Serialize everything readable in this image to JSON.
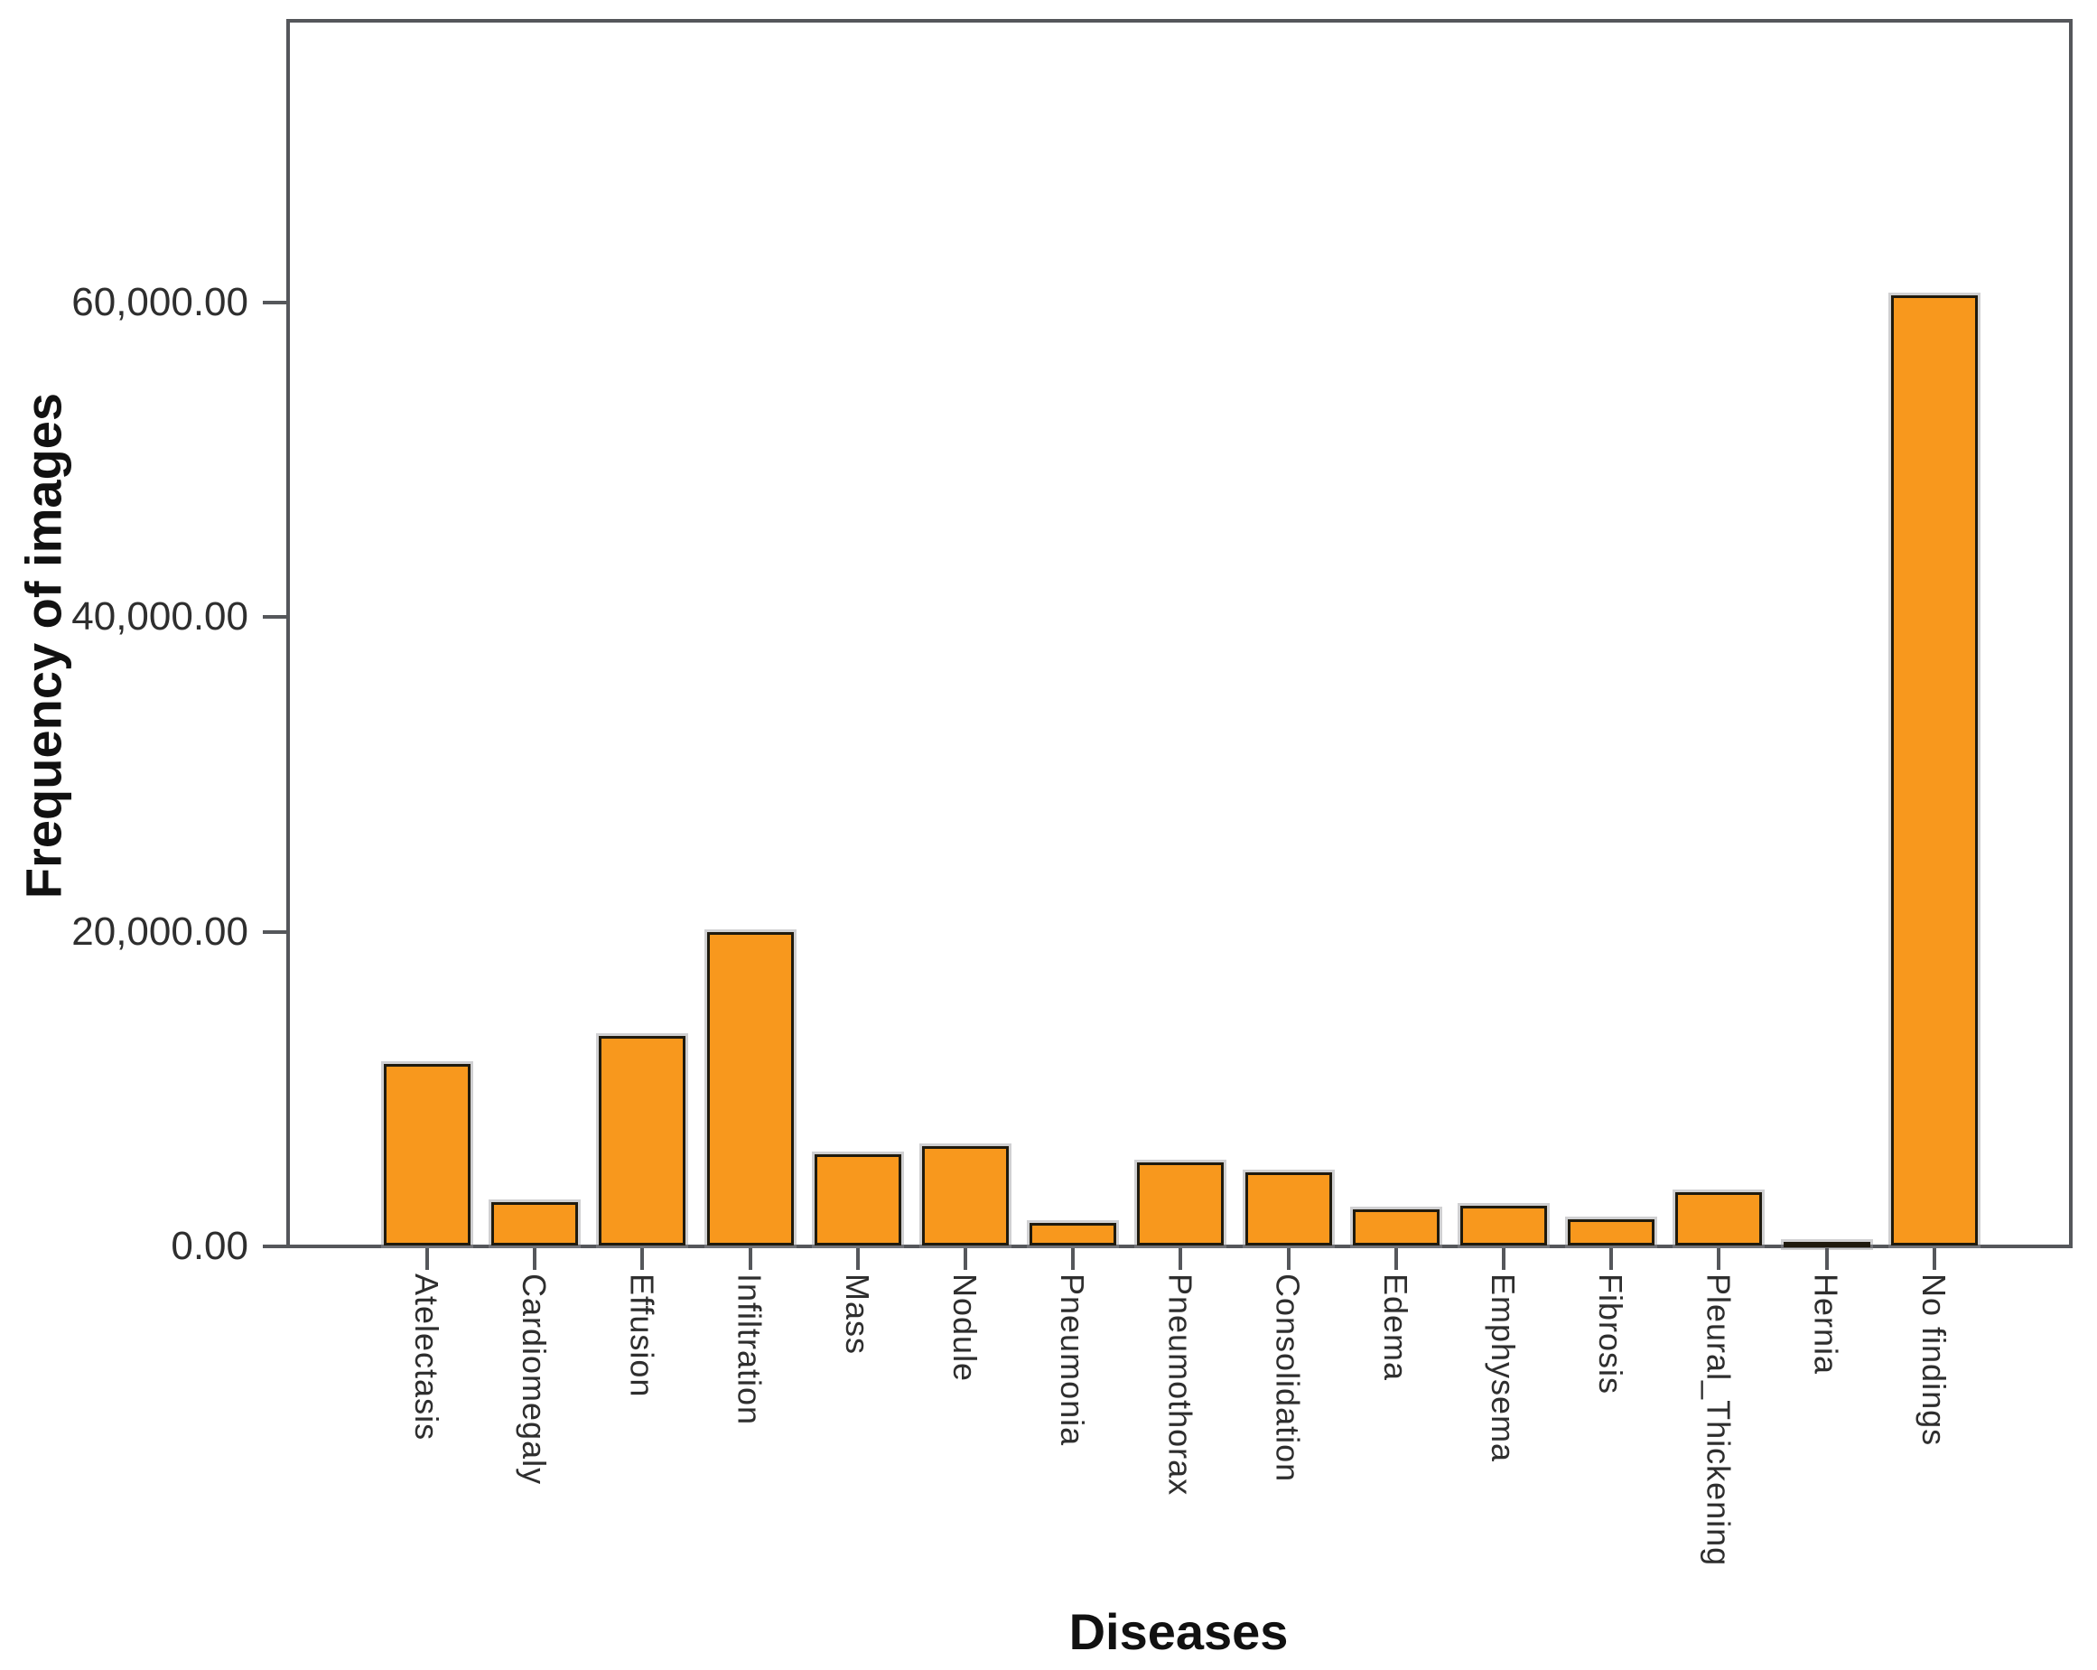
{
  "chart_data": {
    "type": "bar",
    "xlabel": "Diseases",
    "ylabel": "Frequency of images",
    "categories": [
      "Atelectasis",
      "Cardiomegaly",
      "Effusion",
      "Infiltration",
      "Mass",
      "Nodule",
      "Pneumonia",
      "Pneumothorax",
      "Consolidation",
      "Edema",
      "Emphysema",
      "Fibrosis",
      "Pleural_Thickening",
      "Hernia",
      "No findings"
    ],
    "values": [
      11559,
      2776,
      13317,
      19894,
      5782,
      6331,
      1431,
      5302,
      4667,
      2303,
      2516,
      1686,
      3385,
      227,
      60361
    ],
    "y_ticks": {
      "values": [
        0,
        20000,
        40000,
        60000
      ],
      "labels": [
        "0.00",
        "20,000.00",
        "40,000.00",
        "60,000.00"
      ]
    },
    "ylim": [
      0,
      78000
    ],
    "grid": false,
    "legend": "none",
    "bar_color": "#F8981D",
    "bar_border_color": "#1F1A0E",
    "frame_color": "#55575B",
    "text_color": "#2E2E2E"
  }
}
